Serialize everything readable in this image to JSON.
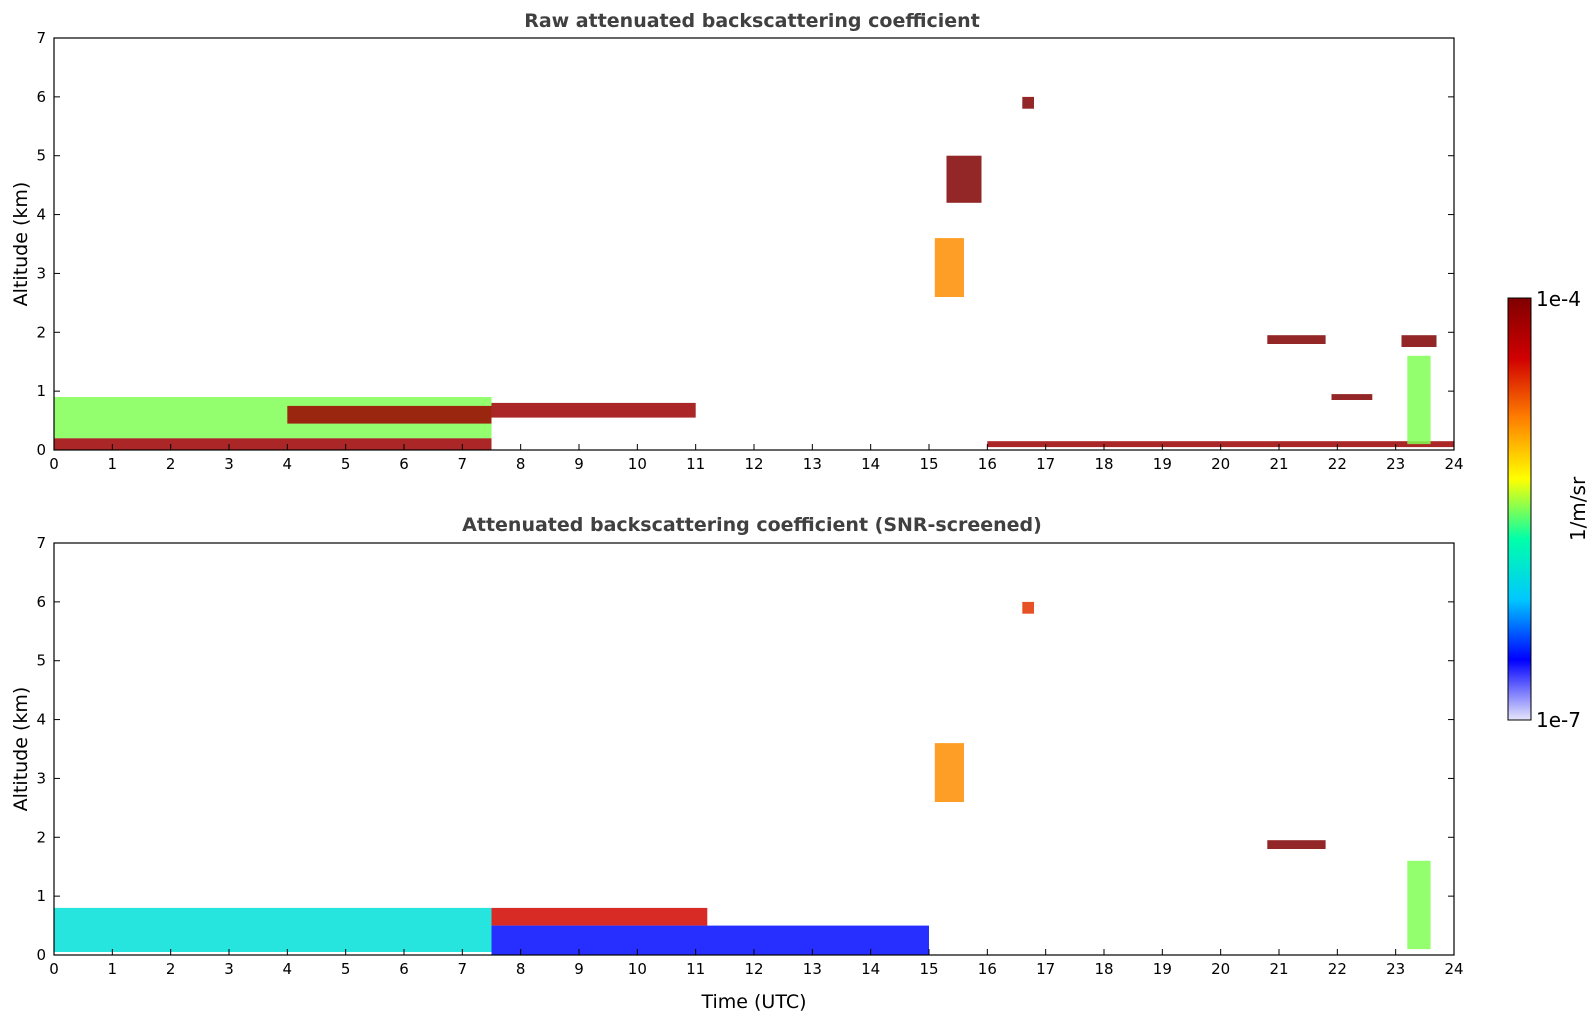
{
  "chart_data": [
    {
      "type": "heatmap",
      "title": "Raw attenuated backscattering coefficient",
      "xlabel": "",
      "ylabel": "Altitude (km)",
      "xlim": [
        0,
        24
      ],
      "ylim": [
        0,
        7
      ],
      "xticks": [
        "0",
        "1",
        "2",
        "3",
        "4",
        "5",
        "6",
        "7",
        "8",
        "9",
        "10",
        "11",
        "12",
        "13",
        "14",
        "15",
        "16",
        "17",
        "18",
        "19",
        "20",
        "21",
        "22",
        "23",
        "24"
      ],
      "yticks": [
        "0",
        "1",
        "2",
        "3",
        "4",
        "5",
        "6",
        "7"
      ],
      "features": [
        {
          "name": "surface layer 0-7.5h",
          "t0": 0,
          "t1": 7.5,
          "z0": 0,
          "z1": 0.2,
          "level": 0.95
        },
        {
          "name": "aerosol layer 0-7.5h",
          "t0": 0,
          "t1": 7.5,
          "z0": 0.2,
          "z1": 0.9,
          "level": 0.5
        },
        {
          "name": "boundary layer top 4-7.5h",
          "t0": 4,
          "t1": 7.5,
          "z0": 0.45,
          "z1": 0.75,
          "level": 0.95
        },
        {
          "name": "cloud layer 7.5-11h",
          "t0": 7.5,
          "t1": 11,
          "z0": 0.55,
          "z1": 0.8,
          "level": 0.95
        },
        {
          "name": "surface layer 16-24h",
          "t0": 16,
          "t1": 24,
          "z0": 0.05,
          "z1": 0.15,
          "level": 0.95
        },
        {
          "name": "virga 15.2h",
          "t0": 15.1,
          "t1": 15.6,
          "z0": 2.6,
          "z1": 3.6,
          "level": 0.7
        },
        {
          "name": "cloud 4.5-5h",
          "t0": 15.3,
          "t1": 15.9,
          "z0": 4.2,
          "z1": 5.0,
          "level": 1.0
        },
        {
          "name": "cloud 6h",
          "t0": 16.6,
          "t1": 16.8,
          "z0": 5.8,
          "z1": 6.0,
          "level": 1.0
        },
        {
          "name": "cloud 1.9km",
          "t0": 20.8,
          "t1": 21.8,
          "z0": 1.8,
          "z1": 1.95,
          "level": 1.0
        },
        {
          "name": "cloud 0.9km",
          "t0": 21.9,
          "t1": 22.6,
          "z0": 0.85,
          "z1": 0.95,
          "level": 1.0
        },
        {
          "name": "cloud 1.8km",
          "t0": 23.1,
          "t1": 23.7,
          "z0": 1.75,
          "z1": 1.95,
          "level": 1.0
        },
        {
          "name": "precip 23.4h",
          "t0": 23.2,
          "t1": 23.6,
          "z0": 0.1,
          "z1": 1.6,
          "level": 0.5
        }
      ]
    },
    {
      "type": "heatmap",
      "title": "Attenuated backscattering coefficient (SNR-screened)",
      "xlabel": "Time (UTC)",
      "ylabel": "Altitude (km)",
      "xlim": [
        0,
        24
      ],
      "ylim": [
        0,
        7
      ],
      "xticks": [
        "0",
        "1",
        "2",
        "3",
        "4",
        "5",
        "6",
        "7",
        "8",
        "9",
        "10",
        "11",
        "12",
        "13",
        "14",
        "15",
        "16",
        "17",
        "18",
        "19",
        "20",
        "21",
        "22",
        "23",
        "24"
      ],
      "yticks": [
        "0",
        "1",
        "2",
        "3",
        "4",
        "5",
        "6",
        "7"
      ],
      "features": [
        {
          "name": "aerosol layer 0-7.5h",
          "t0": 0,
          "t1": 7.5,
          "z0": 0.05,
          "z1": 0.8,
          "level": 0.35
        },
        {
          "name": "cloud layer 7.5-11h",
          "t0": 7.5,
          "t1": 11.2,
          "z0": 0.5,
          "z1": 0.8,
          "level": 0.85
        },
        {
          "name": "blue layer 7.5-15h",
          "t0": 7.5,
          "t1": 15,
          "z0": 0.0,
          "z1": 0.5,
          "level": 0.15
        },
        {
          "name": "virga 15.2h",
          "t0": 15.1,
          "t1": 15.6,
          "z0": 2.6,
          "z1": 3.6,
          "level": 0.7
        },
        {
          "name": "cloud 6h",
          "t0": 16.6,
          "t1": 16.8,
          "z0": 5.8,
          "z1": 6.0,
          "level": 0.8
        },
        {
          "name": "cloud 1.9km",
          "t0": 20.8,
          "t1": 21.8,
          "z0": 1.8,
          "z1": 1.95,
          "level": 1.0
        },
        {
          "name": "precip 23.4h",
          "t0": 23.2,
          "t1": 23.6,
          "z0": 0.1,
          "z1": 1.6,
          "level": 0.5
        }
      ]
    }
  ],
  "colorbar": {
    "max_label": "1e-4",
    "min_label": "1e-7",
    "unit_label": "1/m/sr",
    "colors": [
      "#e6e6fa",
      "#0000ff",
      "#00c8ff",
      "#00ffaa",
      "#ffff00",
      "#ff8000",
      "#d00000",
      "#800000"
    ]
  }
}
